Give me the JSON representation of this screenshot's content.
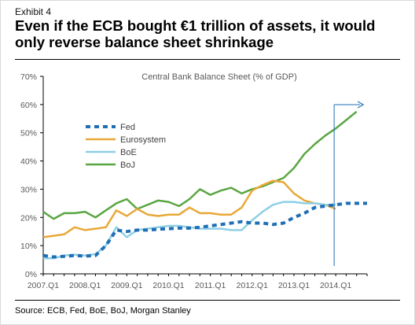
{
  "exhibit_label": "Exhibit 4",
  "headline": "Even if the ECB bought €1 trillion of assets, it would only reverse balance sheet shrinkage",
  "source": "Source: ECB, Fed, BoE, BoJ, Morgan Stanley",
  "colors": {
    "fed": "#1f6fb5",
    "eurosystem": "#e8a838",
    "boe": "#8ecfe6",
    "boj": "#5aa642",
    "arrow": "#1f6fb5",
    "axis_text": "#595959"
  },
  "chart_data": {
    "type": "line",
    "title": "Central Bank Balance Sheet (% of GDP)",
    "xlabel": "",
    "ylabel": "",
    "ylim": [
      0,
      70
    ],
    "y_ticks": [
      "0%",
      "10%",
      "20%",
      "30%",
      "40%",
      "50%",
      "60%",
      "70%"
    ],
    "xlim": [
      "2007.Q1",
      "2014.Q4"
    ],
    "x_ticks": [
      "2007.Q1",
      "2008.Q1",
      "2009.Q1",
      "2010.Q1",
      "2011.Q1",
      "2012.Q1",
      "2013.Q1",
      "2014.Q1"
    ],
    "grid": false,
    "legend_position": "top-left",
    "annotation": "arrow extending Fed forecast beyond 2014.Q1",
    "x": [
      "2007.Q1",
      "2007.Q2",
      "2007.Q3",
      "2007.Q4",
      "2008.Q1",
      "2008.Q2",
      "2008.Q3",
      "2008.Q4",
      "2009.Q1",
      "2009.Q2",
      "2009.Q3",
      "2009.Q4",
      "2010.Q1",
      "2010.Q2",
      "2010.Q3",
      "2010.Q4",
      "2011.Q1",
      "2011.Q2",
      "2011.Q3",
      "2011.Q4",
      "2012.Q1",
      "2012.Q2",
      "2012.Q3",
      "2012.Q4",
      "2013.Q1",
      "2013.Q2",
      "2013.Q3",
      "2013.Q4",
      "2014.Q1",
      "2014.Q2",
      "2014.Q3",
      "2014.Q4"
    ],
    "series": [
      {
        "name": "Fed",
        "style": "dashed",
        "values": [
          6.5,
          6.0,
          6.2,
          6.5,
          6.3,
          6.5,
          10.0,
          15.5,
          15.0,
          15.5,
          15.5,
          15.8,
          16.0,
          16.2,
          16.2,
          16.5,
          17.0,
          17.5,
          18.0,
          18.5,
          18.0,
          18.0,
          17.5,
          18.0,
          20.0,
          21.5,
          23.5,
          24.0,
          24.5,
          25.0,
          25.0,
          25.0
        ]
      },
      {
        "name": "Eurosystem",
        "style": "solid",
        "values": [
          13.0,
          13.5,
          14.0,
          16.5,
          15.5,
          16.0,
          16.5,
          22.5,
          20.5,
          23.0,
          21.0,
          20.5,
          21.0,
          21.0,
          23.5,
          21.5,
          21.5,
          21.0,
          21.0,
          23.5,
          29.5,
          31.5,
          33.0,
          32.5,
          28.5,
          26.0,
          25.0,
          24.5,
          23.0,
          null,
          null,
          null
        ]
      },
      {
        "name": "BoE",
        "style": "solid",
        "values": [
          5.5,
          5.5,
          6.5,
          6.8,
          6.5,
          7.0,
          10.0,
          16.5,
          13.0,
          15.5,
          16.0,
          16.5,
          17.0,
          17.0,
          16.5,
          16.0,
          16.0,
          16.0,
          15.5,
          15.5,
          19.0,
          22.0,
          24.5,
          25.5,
          25.5,
          25.0,
          25.0,
          24.5,
          24.5,
          null,
          null,
          null
        ]
      },
      {
        "name": "BoJ",
        "style": "solid",
        "values": [
          22.0,
          19.5,
          21.5,
          21.5,
          22.0,
          20.0,
          22.5,
          25.0,
          26.5,
          23.0,
          24.5,
          26.0,
          25.5,
          24.0,
          26.5,
          30.0,
          28.0,
          29.5,
          30.5,
          28.5,
          30.0,
          31.0,
          32.5,
          34.0,
          37.5,
          42.5,
          46.0,
          49.0,
          51.5,
          54.5,
          57.5,
          null
        ]
      }
    ]
  }
}
